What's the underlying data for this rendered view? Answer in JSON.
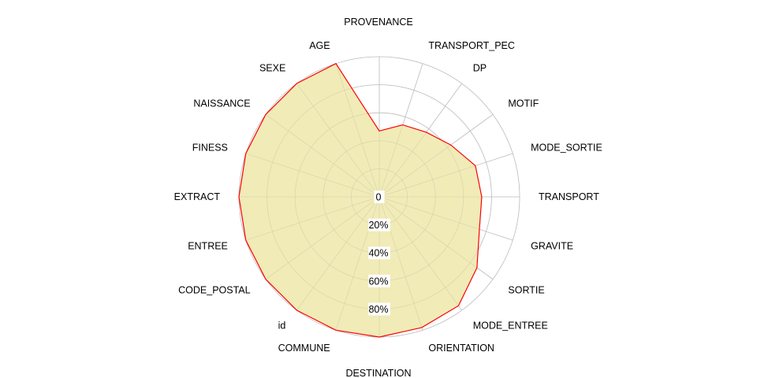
{
  "chart_data": {
    "type": "radar",
    "categories": [
      "PROVENANCE",
      "TRANSPORT_PEC",
      "DP",
      "MOTIF",
      "MODE_SORTIE",
      "TRANSPORT",
      "GRAVITE",
      "SORTIE",
      "MODE_ENTREE",
      "ORIENTATION",
      "DESTINATION",
      "COMMUNE",
      "id",
      "CODE_POSTAL",
      "ENTREE",
      "EXTRACT",
      "FINESS",
      "NAISSANCE",
      "SEXE",
      "AGE"
    ],
    "series": [
      {
        "values": [
          47,
          54,
          57,
          63,
          72,
          73,
          75,
          86,
          96,
          98,
          100,
          100,
          100,
          100,
          100,
          100,
          100,
          100,
          100,
          100
        ]
      }
    ],
    "ylim": [
      0,
      100
    ],
    "rings": [
      0,
      20,
      40,
      60,
      80,
      100
    ],
    "tick_labels": [
      "0",
      "20%",
      "40%",
      "60%",
      "80%"
    ],
    "grid": true,
    "colors": {
      "fill": "#EEE8AA",
      "line": "#FF0000",
      "grid": "#BEBEBE"
    }
  }
}
